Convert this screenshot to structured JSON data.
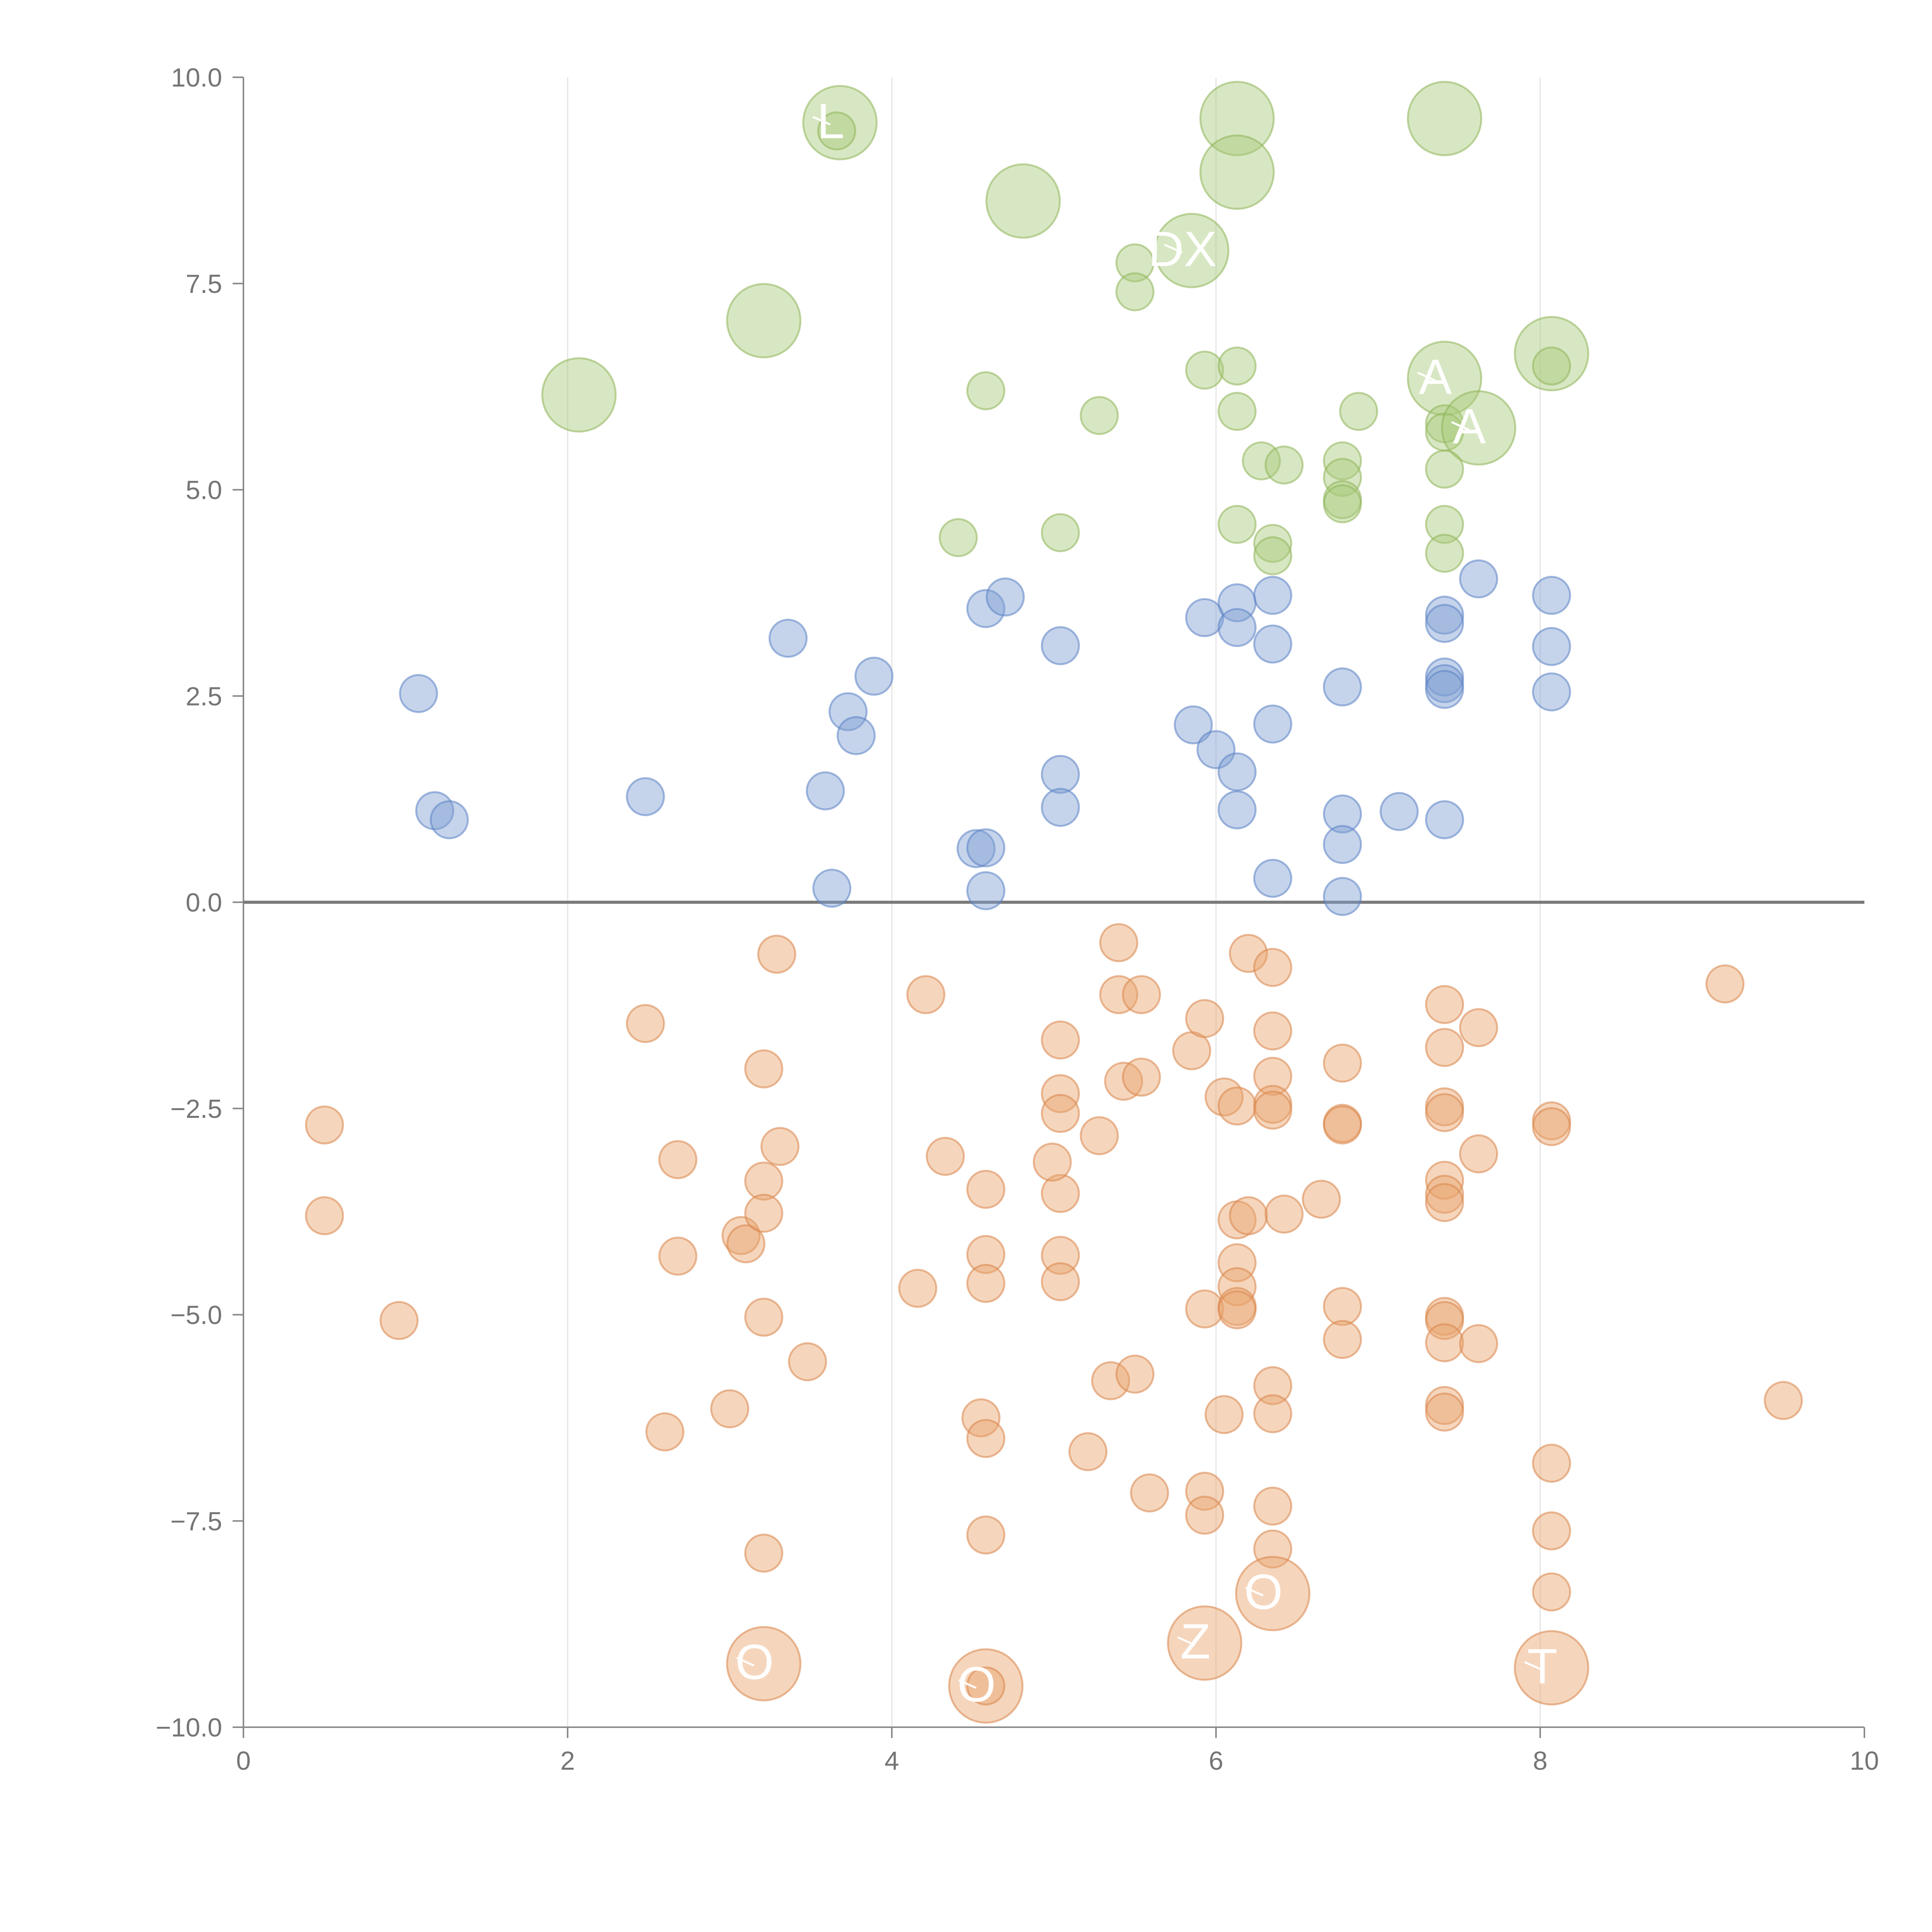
{
  "chart_data": {
    "type": "scatter",
    "title": "",
    "xlabel": "",
    "ylabel": "",
    "xlim": [
      0,
      10
    ],
    "ylim": [
      -10,
      10
    ],
    "x_ticks": [
      0,
      2,
      4,
      6,
      8,
      10
    ],
    "y_ticks": [
      10,
      7.5,
      5,
      2.5,
      0,
      -2.5,
      -5,
      -7.5,
      -10
    ],
    "x_tick_labels": [
      "0",
      "2",
      "4",
      "6",
      "8",
      "10"
    ],
    "y_tick_labels": [
      "10.0",
      "7.5",
      "5.0",
      "2.5",
      "0.0",
      "−2.5",
      "−5.0",
      "−7.5",
      "−10.0"
    ],
    "grid": "vertical only",
    "zero_line": true,
    "legend": "none",
    "colors": {
      "green_fill": "#a9c97a",
      "green_stroke": "#8fb55a",
      "blue_fill": "#7f9fd3",
      "blue_stroke": "#5b82c4",
      "orange_fill": "#e8a36d",
      "orange_stroke": "#d9854a",
      "label": "#ffffff"
    },
    "series": [
      {
        "name": "green",
        "fill": "#a9c97a",
        "stroke": "#8fb55a",
        "points": [
          [
            3.68,
            9.45,
            "L"
          ],
          [
            3.66,
            9.35
          ],
          [
            6.13,
            9.5
          ],
          [
            7.41,
            9.5
          ],
          [
            6.13,
            8.85
          ],
          [
            4.81,
            8.5
          ],
          [
            5.85,
            7.9,
            "DX"
          ],
          [
            5.5,
            7.75
          ],
          [
            5.5,
            7.4
          ],
          [
            3.21,
            7.05
          ],
          [
            2.07,
            6.15
          ],
          [
            8.07,
            6.65
          ],
          [
            8.07,
            6.5
          ],
          [
            7.41,
            6.35,
            "A"
          ],
          [
            5.93,
            6.45
          ],
          [
            6.13,
            6.5
          ],
          [
            4.58,
            6.2
          ],
          [
            5.28,
            5.9
          ],
          [
            6.13,
            5.95
          ],
          [
            6.88,
            5.95
          ],
          [
            7.41,
            5.8
          ],
          [
            7.41,
            5.7
          ],
          [
            7.62,
            5.75,
            "A"
          ],
          [
            6.28,
            5.35
          ],
          [
            6.42,
            5.3
          ],
          [
            6.78,
            5.35
          ],
          [
            6.78,
            5.15
          ],
          [
            7.41,
            5.25
          ],
          [
            6.78,
            4.88
          ],
          [
            6.78,
            4.83
          ],
          [
            4.41,
            4.42
          ],
          [
            5.04,
            4.48
          ],
          [
            6.13,
            4.58
          ],
          [
            6.35,
            4.35
          ],
          [
            6.35,
            4.2
          ],
          [
            7.41,
            4.58
          ],
          [
            7.41,
            4.23
          ]
        ],
        "sizes": [
          "big",
          "small",
          "big",
          "big",
          "big",
          "big",
          "big",
          "small",
          "small",
          "big",
          "big",
          "big",
          "small",
          "big",
          "small",
          "small",
          "small",
          "small",
          "small",
          "small",
          "small",
          "small",
          "big",
          "small",
          "small",
          "small",
          "small",
          "small",
          "small",
          "small",
          "small",
          "small",
          "small",
          "small",
          "small",
          "small",
          "small"
        ]
      },
      {
        "name": "blue",
        "fill": "#7f9fd3",
        "stroke": "#5b82c4",
        "points": [
          [
            1.08,
            2.53
          ],
          [
            1.18,
            1.11
          ],
          [
            1.27,
            1.0
          ],
          [
            2.48,
            1.28
          ],
          [
            3.36,
            3.2
          ],
          [
            3.59,
            1.35
          ],
          [
            3.63,
            0.17
          ],
          [
            3.73,
            2.31
          ],
          [
            3.78,
            2.02
          ],
          [
            3.89,
            2.74
          ],
          [
            4.52,
            0.65
          ],
          [
            4.58,
            0.66
          ],
          [
            4.58,
            0.14
          ],
          [
            4.58,
            3.56
          ],
          [
            4.7,
            3.7
          ],
          [
            5.04,
            3.11
          ],
          [
            5.04,
            1.55
          ],
          [
            5.04,
            1.15
          ],
          [
            5.86,
            2.15
          ],
          [
            5.93,
            3.45
          ],
          [
            6.0,
            1.85
          ],
          [
            6.13,
            3.63
          ],
          [
            6.13,
            3.33
          ],
          [
            6.13,
            1.58
          ],
          [
            6.13,
            1.12
          ],
          [
            6.35,
            3.72
          ],
          [
            6.35,
            3.13
          ],
          [
            6.35,
            2.16
          ],
          [
            6.35,
            0.29
          ],
          [
            6.78,
            2.61
          ],
          [
            6.78,
            1.07
          ],
          [
            6.78,
            0.7
          ],
          [
            6.78,
            0.07
          ],
          [
            7.13,
            1.1
          ],
          [
            7.41,
            3.48
          ],
          [
            7.41,
            3.38
          ],
          [
            7.41,
            2.73
          ],
          [
            7.41,
            2.65
          ],
          [
            7.41,
            2.58
          ],
          [
            7.41,
            1.0
          ],
          [
            7.62,
            3.92
          ],
          [
            8.07,
            3.72
          ],
          [
            8.07,
            3.1
          ],
          [
            8.07,
            2.55
          ]
        ],
        "sizes": "small"
      },
      {
        "name": "orange",
        "fill": "#e8a36d",
        "stroke": "#d9854a",
        "points": [
          [
            0.5,
            -2.7
          ],
          [
            0.5,
            -3.8
          ],
          [
            0.96,
            -5.07
          ],
          [
            2.48,
            -1.47
          ],
          [
            2.68,
            -3.12
          ],
          [
            2.68,
            -4.29
          ],
          [
            2.6,
            -6.42
          ],
          [
            3.0,
            -6.14
          ],
          [
            3.07,
            -4.04
          ],
          [
            3.1,
            -4.14
          ],
          [
            3.21,
            -2.02
          ],
          [
            3.21,
            -3.38
          ],
          [
            3.21,
            -3.77
          ],
          [
            3.21,
            -5.03
          ],
          [
            3.21,
            -7.89
          ],
          [
            3.21,
            -9.23,
            "O"
          ],
          [
            3.29,
            -0.63
          ],
          [
            3.31,
            -2.96
          ],
          [
            3.48,
            -5.57
          ],
          [
            4.16,
            -4.68
          ],
          [
            4.21,
            -1.12
          ],
          [
            4.33,
            -3.08
          ],
          [
            4.55,
            -6.25
          ],
          [
            4.58,
            -3.48
          ],
          [
            4.58,
            -4.27
          ],
          [
            4.58,
            -4.62
          ],
          [
            4.58,
            -6.5
          ],
          [
            4.58,
            -7.67
          ],
          [
            4.58,
            -9.5,
            "O"
          ],
          [
            4.58,
            -9.5
          ],
          [
            5.04,
            -1.67
          ],
          [
            5.04,
            -2.32
          ],
          [
            5.04,
            -2.56
          ],
          [
            5.04,
            -3.53
          ],
          [
            4.99,
            -3.15
          ],
          [
            5.04,
            -4.28
          ],
          [
            5.04,
            -4.6
          ],
          [
            5.21,
            -6.66
          ],
          [
            5.28,
            -2.83
          ],
          [
            5.35,
            -5.8
          ],
          [
            5.4,
            -0.49
          ],
          [
            5.4,
            -1.12
          ],
          [
            5.43,
            -2.17
          ],
          [
            5.5,
            -5.72
          ],
          [
            5.54,
            -1.12
          ],
          [
            5.54,
            -2.12
          ],
          [
            5.59,
            -7.16
          ],
          [
            5.85,
            -1.8
          ],
          [
            5.93,
            -1.41
          ],
          [
            5.93,
            -4.93
          ],
          [
            5.93,
            -7.14
          ],
          [
            5.93,
            -7.43
          ],
          [
            5.93,
            -8.98,
            "Z"
          ],
          [
            6.05,
            -2.36
          ],
          [
            6.05,
            -6.21
          ],
          [
            6.13,
            -2.47
          ],
          [
            6.13,
            -3.85
          ],
          [
            6.13,
            -4.37
          ],
          [
            6.13,
            -4.66
          ],
          [
            6.13,
            -4.9
          ],
          [
            6.13,
            -4.94
          ],
          [
            6.2,
            -0.62
          ],
          [
            6.2,
            -3.8
          ],
          [
            6.35,
            -0.79
          ],
          [
            6.35,
            -1.56
          ],
          [
            6.35,
            -2.11
          ],
          [
            6.35,
            -2.45
          ],
          [
            6.35,
            -2.52
          ],
          [
            6.35,
            -5.86
          ],
          [
            6.35,
            -6.2
          ],
          [
            6.35,
            -7.32
          ],
          [
            6.35,
            -7.84
          ],
          [
            6.35,
            -8.38,
            "O"
          ],
          [
            6.42,
            -3.78
          ],
          [
            6.65,
            -3.6
          ],
          [
            6.78,
            -1.95
          ],
          [
            6.78,
            -2.68
          ],
          [
            6.78,
            -2.7
          ],
          [
            6.78,
            -4.9
          ],
          [
            6.78,
            -5.3
          ],
          [
            7.41,
            -1.24
          ],
          [
            7.41,
            -1.76
          ],
          [
            7.41,
            -2.48
          ],
          [
            7.41,
            -2.55
          ],
          [
            7.41,
            -3.37
          ],
          [
            7.41,
            -3.54
          ],
          [
            7.41,
            -3.64
          ],
          [
            7.41,
            -5.02
          ],
          [
            7.41,
            -5.07
          ],
          [
            7.41,
            -5.34
          ],
          [
            7.41,
            -6.1
          ],
          [
            7.41,
            -6.18
          ],
          [
            7.62,
            -1.52
          ],
          [
            7.62,
            -3.05
          ],
          [
            7.62,
            -5.35
          ],
          [
            8.07,
            -2.65
          ],
          [
            8.07,
            -2.72
          ],
          [
            8.07,
            -6.8
          ],
          [
            8.07,
            -7.62
          ],
          [
            8.07,
            -8.36
          ],
          [
            8.07,
            -9.28,
            "T"
          ],
          [
            9.14,
            -0.99
          ],
          [
            9.5,
            -6.04
          ]
        ],
        "big_indices": [
          15,
          28,
          52,
          72,
          100
        ]
      }
    ]
  }
}
